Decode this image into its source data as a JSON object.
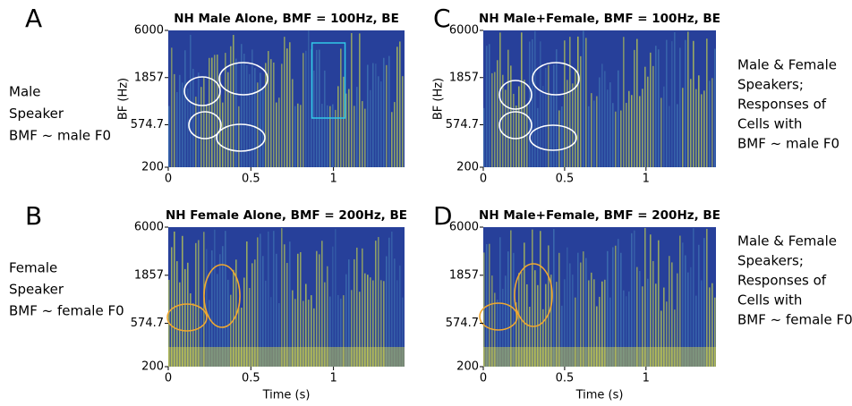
{
  "chart_data": [
    {
      "type": "heatmap",
      "panel": "A",
      "title": "NH Male Alone, BMF = 100Hz, BE",
      "ylabel": "BF (Hz)",
      "xlim": [
        0,
        1.43
      ],
      "ylim": [
        200,
        6000
      ],
      "log_y": true,
      "xticks": [
        0,
        0.5,
        1
      ],
      "yticks": [
        200,
        574.7,
        1857,
        6000
      ],
      "annotation_color": "#ffffff",
      "side_label": [
        "Male",
        "Speaker",
        "BMF ~ male F0"
      ]
    },
    {
      "type": "heatmap",
      "panel": "C",
      "title": "NH Male+Female, BMF = 100Hz, BE",
      "ylabel": "BF (Hz)",
      "xlim": [
        0,
        1.43
      ],
      "ylim": [
        200,
        6000
      ],
      "log_y": true,
      "xticks": [
        0,
        0.5,
        1
      ],
      "yticks": [
        200,
        574.7,
        1857,
        6000
      ],
      "annotation_color": "#ffffff",
      "side_label": [
        "Male & Female",
        "Speakers;",
        "Responses of",
        "Cells with",
        "BMF ~ male F0"
      ]
    },
    {
      "type": "heatmap",
      "panel": "B",
      "title": "NH Female Alone, BMF = 200Hz, BE",
      "xlabel": "Time (s)",
      "xlim": [
        0,
        1.43
      ],
      "ylim": [
        200,
        6000
      ],
      "log_y": true,
      "xticks": [
        0,
        0.5,
        1
      ],
      "yticks": [
        200,
        574.7,
        1857,
        6000
      ],
      "annotation_color": "#f0a830",
      "side_label": [
        "Female",
        "Speaker",
        "BMF ~ female F0"
      ]
    },
    {
      "type": "heatmap",
      "panel": "D",
      "title": "NH Male+Female, BMF = 200Hz, BE",
      "xlabel": "Time (s)",
      "xlim": [
        0,
        1.43
      ],
      "ylim": [
        200,
        6000
      ],
      "log_y": true,
      "xticks": [
        0,
        0.5,
        1
      ],
      "yticks": [
        200,
        574.7,
        1857,
        6000
      ],
      "annotation_color": "#f0a830",
      "side_label": [
        "Male & Female",
        "Speakers;",
        "Responses of",
        "Cells with",
        "BMF ~ female F0"
      ]
    }
  ]
}
